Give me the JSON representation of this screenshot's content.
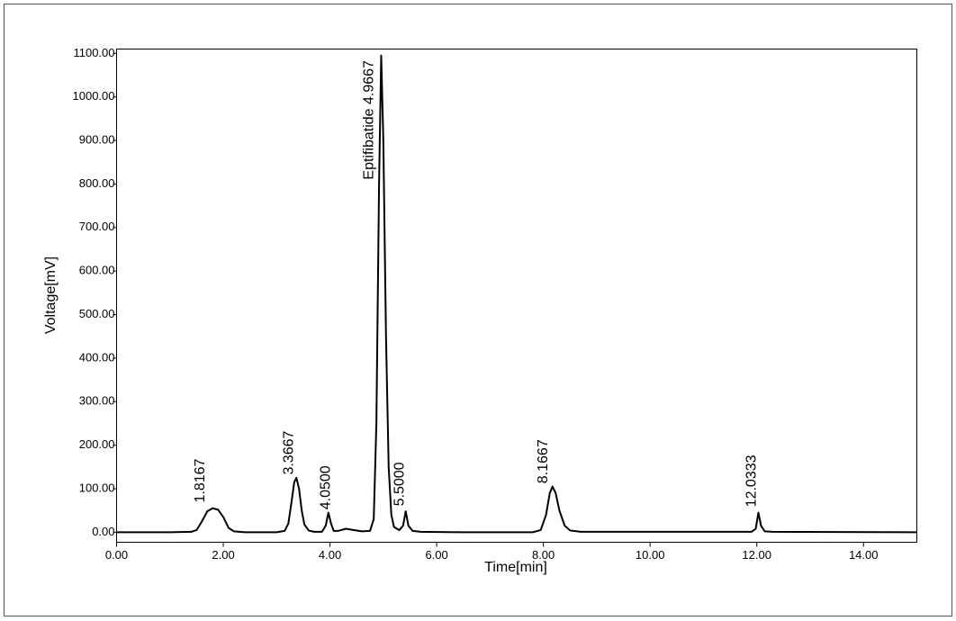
{
  "chart_data": {
    "type": "line",
    "xlabel": "Time[min]",
    "ylabel": "Voltage[mV]",
    "xlim": [
      0,
      15
    ],
    "ylim": [
      -23,
      1110
    ],
    "xticks": [
      {
        "value": 0,
        "label": "0.00"
      },
      {
        "value": 2,
        "label": "2.00"
      },
      {
        "value": 4,
        "label": "4.00"
      },
      {
        "value": 6,
        "label": "6.00"
      },
      {
        "value": 8,
        "label": "8.00"
      },
      {
        "value": 10,
        "label": "10.00"
      },
      {
        "value": 12,
        "label": "12.00"
      },
      {
        "value": 14,
        "label": "14.00"
      }
    ],
    "yticks": [
      {
        "value": 0,
        "label": "0.00"
      },
      {
        "value": 100,
        "label": "100.00"
      },
      {
        "value": 200,
        "label": "200.00"
      },
      {
        "value": 300,
        "label": "300.00"
      },
      {
        "value": 400,
        "label": "400.00"
      },
      {
        "value": 500,
        "label": "500.00"
      },
      {
        "value": 600,
        "label": "600.00"
      },
      {
        "value": 700,
        "label": "700.00"
      },
      {
        "value": 800,
        "label": "800.00"
      },
      {
        "value": 900,
        "label": "900.00"
      },
      {
        "value": 1000,
        "label": "1000.00"
      },
      {
        "value": 1100,
        "label": "1100.00"
      }
    ],
    "grid": false,
    "color": "#000000",
    "x": [
      0,
      1.0,
      1.4,
      1.5,
      1.6,
      1.7,
      1.8,
      1.9,
      2.0,
      2.1,
      2.2,
      2.4,
      3.0,
      3.15,
      3.22,
      3.28,
      3.33,
      3.37,
      3.42,
      3.47,
      3.52,
      3.6,
      3.7,
      3.85,
      3.92,
      3.97,
      4.02,
      4.07,
      4.15,
      4.3,
      4.45,
      4.6,
      4.75,
      4.82,
      4.87,
      4.92,
      4.96,
      5.0,
      5.05,
      5.1,
      5.15,
      5.2,
      5.3,
      5.37,
      5.42,
      5.47,
      5.55,
      5.7,
      6.5,
      7.8,
      7.95,
      8.05,
      8.12,
      8.17,
      8.23,
      8.3,
      8.4,
      8.5,
      8.7,
      11.9,
      11.98,
      12.03,
      12.08,
      12.15,
      12.3,
      15
    ],
    "values": [
      0,
      0,
      1,
      5,
      25,
      48,
      55,
      52,
      35,
      10,
      2,
      0,
      0,
      3,
      20,
      70,
      115,
      125,
      100,
      50,
      18,
      4,
      1,
      1,
      15,
      45,
      20,
      3,
      3,
      8,
      5,
      2,
      3,
      30,
      250,
      800,
      1095,
      900,
      450,
      150,
      40,
      12,
      5,
      15,
      48,
      15,
      3,
      1,
      0,
      0,
      5,
      40,
      90,
      105,
      90,
      50,
      15,
      4,
      1,
      1,
      8,
      45,
      15,
      2,
      1,
      0
    ],
    "annotations": [
      {
        "text": "1.8167",
        "x": 1.57,
        "y": 68
      },
      {
        "text": "3.3667",
        "x": 3.24,
        "y": 132
      },
      {
        "text": "4.0500",
        "x": 3.93,
        "y": 52
      },
      {
        "text": "Eptifibatide 4.9667",
        "x": 4.74,
        "y": 810
      },
      {
        "text": "5.5000",
        "x": 5.31,
        "y": 60
      },
      {
        "text": "8.1667",
        "x": 8.0,
        "y": 112
      },
      {
        "text": "12.0333",
        "x": 11.91,
        "y": 58
      }
    ]
  }
}
